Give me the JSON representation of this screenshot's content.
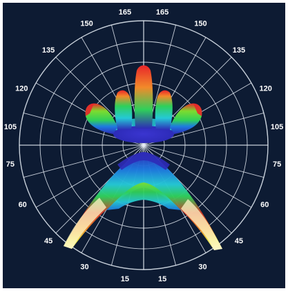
{
  "chart_data": {
    "type": "polar",
    "plot_style": "3D intensity distribution (rainbow colormap) on polar grid",
    "angle_tick_labels": {
      "left": [
        "165",
        "150",
        "135",
        "120",
        "105",
        "75",
        "60",
        "45",
        "30",
        "15"
      ],
      "right": [
        "165",
        "150",
        "135",
        "120",
        "105",
        "75",
        "60",
        "45",
        "30",
        "15"
      ]
    },
    "grid": true,
    "colors": {
      "background": "#0d1b33",
      "grid": "#e8eef7",
      "label": "#ffffff",
      "colormap": [
        "#2d2bb8",
        "#1e7be0",
        "#25c9d6",
        "#2fd05a",
        "#7ddc2f",
        "#f0e94a",
        "#f28a2a",
        "#e8262a",
        "#fff8c8"
      ]
    }
  }
}
